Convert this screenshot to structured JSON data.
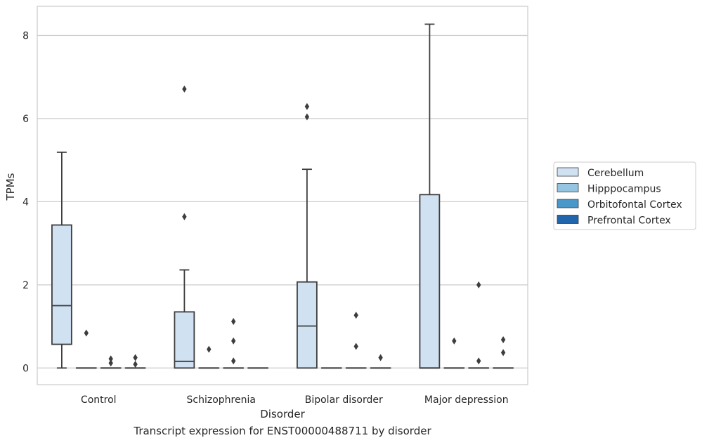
{
  "caption": "Transcript expression for ENST00000488711 by disorder",
  "chart_data": {
    "type": "boxplot",
    "xlabel": "Disorder",
    "ylabel": "TPMs",
    "ylim": [
      -0.4,
      8.7
    ],
    "yticks": [
      0,
      2,
      4,
      6,
      8
    ],
    "grid": "horizontal",
    "legend_position": "right",
    "categories": [
      "Control",
      "Schizophrenia",
      "Bipolar disorder",
      "Major depression"
    ],
    "series": [
      {
        "name": "Cerebellum",
        "color": "#d0e1f2",
        "boxes": [
          {
            "whisker_low": 0,
            "q1": 0.57,
            "median": 1.5,
            "q3": 3.44,
            "whisker_high": 5.19,
            "outliers": []
          },
          {
            "whisker_low": 0,
            "q1": 0,
            "median": 0.16,
            "q3": 1.35,
            "whisker_high": 2.36,
            "outliers": [
              3.64,
              6.71
            ]
          },
          {
            "whisker_low": 0,
            "q1": 0,
            "median": 1.01,
            "q3": 2.07,
            "whisker_high": 4.78,
            "outliers": [
              6.04,
              6.29
            ]
          },
          {
            "whisker_low": 0,
            "q1": 0,
            "median": 0,
            "q3": 4.17,
            "whisker_high": 8.27,
            "outliers": []
          }
        ]
      },
      {
        "name": "Hipppocampus",
        "color": "#94c4df",
        "boxes": [
          {
            "whisker_low": 0,
            "q1": 0,
            "median": 0,
            "q3": 0,
            "whisker_high": 0,
            "outliers": [
              0.84
            ]
          },
          {
            "whisker_low": 0,
            "q1": 0,
            "median": 0,
            "q3": 0,
            "whisker_high": 0,
            "outliers": [
              0.45
            ]
          },
          {
            "whisker_low": 0,
            "q1": 0,
            "median": 0,
            "q3": 0,
            "whisker_high": 0,
            "outliers": []
          },
          {
            "whisker_low": 0,
            "q1": 0,
            "median": 0,
            "q3": 0,
            "whisker_high": 0,
            "outliers": [
              0.65
            ]
          }
        ]
      },
      {
        "name": "Orbitofontal Cortex",
        "color": "#4a98c9",
        "boxes": [
          {
            "whisker_low": 0,
            "q1": 0,
            "median": 0,
            "q3": 0,
            "whisker_high": 0,
            "outliers": [
              0.12,
              0.22
            ]
          },
          {
            "whisker_low": 0,
            "q1": 0,
            "median": 0,
            "q3": 0,
            "whisker_high": 0,
            "outliers": [
              0.17,
              0.65,
              1.12
            ]
          },
          {
            "whisker_low": 0,
            "q1": 0,
            "median": 0,
            "q3": 0,
            "whisker_high": 0,
            "outliers": [
              0.52,
              1.27
            ]
          },
          {
            "whisker_low": 0,
            "q1": 0,
            "median": 0,
            "q3": 0,
            "whisker_high": 0,
            "outliers": [
              0.17,
              2.0
            ]
          }
        ]
      },
      {
        "name": "Prefrontal Cortex",
        "color": "#2166ac",
        "boxes": [
          {
            "whisker_low": 0,
            "q1": 0,
            "median": 0,
            "q3": 0,
            "whisker_high": 0,
            "outliers": [
              0.09,
              0.25
            ]
          },
          {
            "whisker_low": 0,
            "q1": 0,
            "median": 0,
            "q3": 0,
            "whisker_high": 0,
            "outliers": []
          },
          {
            "whisker_low": 0,
            "q1": 0,
            "median": 0,
            "q3": 0,
            "whisker_high": 0,
            "outliers": [
              0.25
            ]
          },
          {
            "whisker_low": 0,
            "q1": 0,
            "median": 0,
            "q3": 0,
            "whisker_high": 0,
            "outliers": [
              0.37,
              0.68
            ]
          }
        ]
      }
    ]
  }
}
